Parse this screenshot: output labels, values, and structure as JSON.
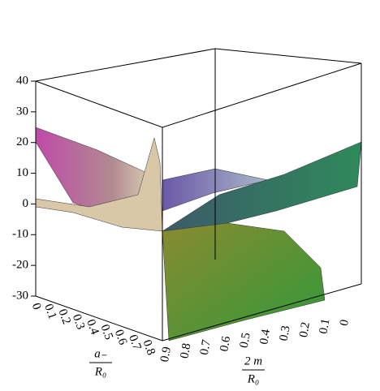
{
  "chart_data": {
    "type": "surface",
    "zlim": [
      -30,
      40
    ],
    "zticks": [
      -30,
      -20,
      -10,
      0,
      10,
      20,
      30,
      40
    ],
    "xlim": [
      0,
      0.9
    ],
    "xticks": [
      0,
      0.1,
      0.2,
      0.3,
      0.4,
      0.5,
      0.6,
      0.7,
      0.8
    ],
    "ylim": [
      0,
      0.9
    ],
    "yticks": [
      0,
      0.1,
      0.2,
      0.3,
      0.4,
      0.5,
      0.6,
      0.7,
      0.8,
      0.9
    ],
    "xlabel": {
      "numerator": "a₋",
      "denominator": "R₀"
    },
    "ylabel": {
      "numerator": "2 m",
      "denominator": "R₀"
    }
  }
}
